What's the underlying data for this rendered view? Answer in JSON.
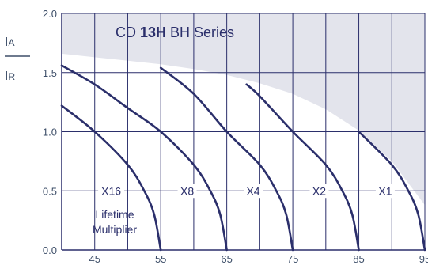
{
  "chart_data": {
    "type": "line",
    "title": {
      "prefix": "CD ",
      "bold": "13H",
      "suffix": " BH Series"
    },
    "ylabel": {
      "top": "I",
      "top_sub": "A",
      "bottom": "I",
      "bottom_sub": "R"
    },
    "xlim": [
      40,
      95
    ],
    "ylim": [
      0,
      2.0
    ],
    "x_ticks": [
      45,
      55,
      65,
      75,
      85,
      95
    ],
    "y_ticks": [
      "0.0",
      "0.5",
      "1.0",
      "1.5",
      "2.0"
    ],
    "grid": true,
    "curves": [
      {
        "name": "X16",
        "points": [
          [
            40,
            1.22
          ],
          [
            45,
            1.0
          ],
          [
            50,
            0.72
          ],
          [
            52.5,
            0.5
          ],
          [
            54,
            0.3
          ],
          [
            55,
            0.0
          ]
        ]
      },
      {
        "name": "X8",
        "points": [
          [
            40,
            1.56
          ],
          [
            45,
            1.4
          ],
          [
            50,
            1.2
          ],
          [
            55,
            1.0
          ],
          [
            60,
            0.72
          ],
          [
            62.5,
            0.5
          ],
          [
            64,
            0.3
          ],
          [
            65,
            0.0
          ]
        ]
      },
      {
        "name": "X4",
        "points": [
          [
            55,
            1.54
          ],
          [
            60,
            1.32
          ],
          [
            65,
            1.0
          ],
          [
            70,
            0.72
          ],
          [
            72.5,
            0.5
          ],
          [
            74,
            0.3
          ],
          [
            75,
            0.0
          ]
        ]
      },
      {
        "name": "X2",
        "points": [
          [
            68,
            1.4
          ],
          [
            70,
            1.3
          ],
          [
            75,
            1.0
          ],
          [
            80,
            0.72
          ],
          [
            82.5,
            0.5
          ],
          [
            84,
            0.3
          ],
          [
            85,
            0.0
          ]
        ]
      },
      {
        "name": "X1",
        "points": [
          [
            85,
            1.0
          ],
          [
            90,
            0.72
          ],
          [
            92.5,
            0.5
          ],
          [
            94,
            0.3
          ],
          [
            95,
            0.0
          ]
        ]
      }
    ],
    "multiplier_labels": [
      {
        "text": "X16",
        "x": 47.5,
        "y": 0.5
      },
      {
        "text": "X8",
        "x": 59,
        "y": 0.5
      },
      {
        "text": "X4",
        "x": 69,
        "y": 0.5
      },
      {
        "text": "X2",
        "x": 79,
        "y": 0.5
      },
      {
        "text": "X1",
        "x": 89,
        "y": 0.5
      }
    ],
    "note": [
      "Lifetime",
      "Multiplier"
    ],
    "region_boundary": [
      [
        40,
        1.66
      ],
      [
        45,
        1.63
      ],
      [
        50,
        1.6
      ],
      [
        55,
        1.57
      ],
      [
        60,
        1.53
      ],
      [
        65,
        1.48
      ],
      [
        70,
        1.41
      ],
      [
        75,
        1.32
      ],
      [
        80,
        1.19
      ],
      [
        85,
        1.01
      ],
      [
        90,
        0.75
      ],
      [
        95,
        0.38
      ]
    ],
    "colors": {
      "curve": "#2b2f6b",
      "grid": "#2b2f6b",
      "region": "#e3e4ec",
      "text": "#3e4f69"
    }
  }
}
